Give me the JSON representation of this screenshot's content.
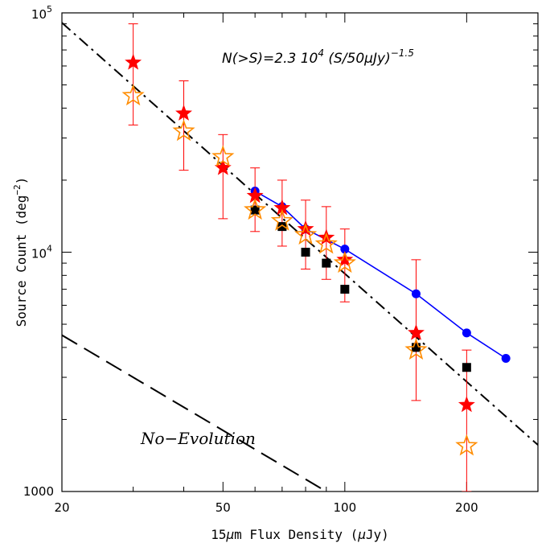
{
  "chart_data": {
    "type": "scatter",
    "x_scale": "log",
    "y_scale": "log",
    "xlim": [
      20,
      300
    ],
    "ylim": [
      1000,
      100000
    ],
    "xlabel_parts": [
      "15",
      "μ",
      "m Flux Density (",
      "μ",
      "Jy)"
    ],
    "ylabel_parts": [
      "Source Count (deg",
      "−2",
      ")"
    ],
    "x_ticks": [
      {
        "value": 20,
        "label": "20"
      },
      {
        "value": 50,
        "label": "50"
      },
      {
        "value": 100,
        "label": "100"
      },
      {
        "value": 200,
        "label": "200"
      }
    ],
    "y_ticks": [
      {
        "value": 1000,
        "label": "1000"
      },
      {
        "value": 10000,
        "label_base": "10",
        "label_exp": "4"
      },
      {
        "value": 100000,
        "label_base": "10",
        "label_exp": "5"
      }
    ],
    "annotations": {
      "formula_parts": [
        "N(>S)=2.3 10",
        "4",
        " (S/50",
        "μ",
        "Jy)",
        "−1.5"
      ],
      "no_evolution": "No−Evolution"
    },
    "series": [
      {
        "marker": "filled-star",
        "color": "#ff0000",
        "points": [
          {
            "x": 30,
            "y": 62000,
            "err": [
              34000,
              90000
            ]
          },
          {
            "x": 40,
            "y": 38000,
            "err": [
              22000,
              52000
            ]
          },
          {
            "x": 50,
            "y": 22500,
            "err": [
              13800,
              31000
            ]
          },
          {
            "x": 60,
            "y": 17200,
            "err": [
              12200,
              22500
            ]
          },
          {
            "x": 70,
            "y": 15300,
            "err": [
              10600,
              20000
            ]
          },
          {
            "x": 80,
            "y": 12500,
            "err": [
              8500,
              16500
            ]
          },
          {
            "x": 90,
            "y": 11500,
            "err": [
              7700,
              15500
            ]
          },
          {
            "x": 100,
            "y": 9300,
            "err": [
              6200,
              12500
            ]
          },
          {
            "x": 150,
            "y": 4600,
            "err": [
              2400,
              9300
            ]
          },
          {
            "x": 200,
            "y": 2300,
            "err": [
              1000,
              3900
            ]
          }
        ]
      },
      {
        "marker": "open-star",
        "color": "#ff8c00",
        "points": [
          {
            "x": 30,
            "y": 45000
          },
          {
            "x": 40,
            "y": 32000
          },
          {
            "x": 50,
            "y": 25000
          },
          {
            "x": 60,
            "y": 15000
          },
          {
            "x": 70,
            "y": 13500
          },
          {
            "x": 80,
            "y": 11800
          },
          {
            "x": 90,
            "y": 10800
          },
          {
            "x": 100,
            "y": 9000
          },
          {
            "x": 150,
            "y": 3900
          },
          {
            "x": 200,
            "y": 1550
          }
        ]
      },
      {
        "marker": "filled-square",
        "color": "#000000",
        "points": [
          {
            "x": 60,
            "y": 15000
          },
          {
            "x": 70,
            "y": 12800
          },
          {
            "x": 80,
            "y": 10000
          },
          {
            "x": 90,
            "y": 9000
          },
          {
            "x": 100,
            "y": 7000
          },
          {
            "x": 150,
            "y": 4000
          },
          {
            "x": 200,
            "y": 3300
          }
        ]
      },
      {
        "marker": "circle-line",
        "color": "#0000ff",
        "points": [
          {
            "x": 60,
            "y": 18000
          },
          {
            "x": 70,
            "y": 15500
          },
          {
            "x": 80,
            "y": 12500
          },
          {
            "x": 100,
            "y": 10300
          },
          {
            "x": 150,
            "y": 6700
          },
          {
            "x": 200,
            "y": 4600
          },
          {
            "x": 250,
            "y": 3600
          }
        ]
      }
    ],
    "fit_line": {
      "style": "dash-dot",
      "color": "#000000",
      "formula": "2.3e4*(S/50)^-1.5",
      "from": [
        20,
        300
      ]
    },
    "no_evolution_line": {
      "style": "dashed",
      "color": "#000000",
      "from": [
        20,
        4500
      ],
      "to": [
        90,
        1000
      ]
    }
  }
}
